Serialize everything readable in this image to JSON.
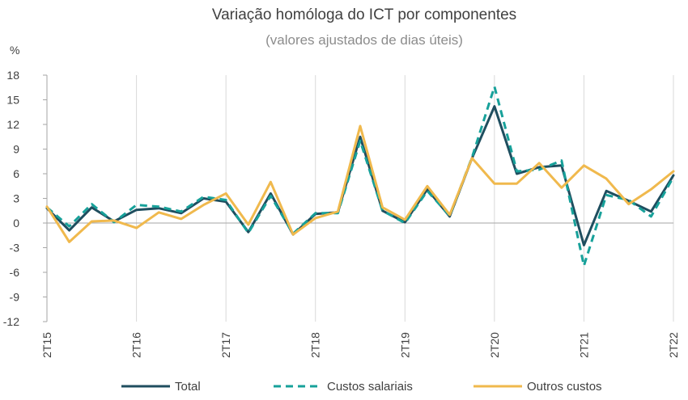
{
  "chart_data": {
    "type": "line",
    "title": "Variação homóloga do ICT por componentes",
    "subtitle": "(valores ajustados de dias úteis)",
    "ylabel": "%",
    "ylim": [
      -12,
      18
    ],
    "yticks": [
      18,
      15,
      12,
      9,
      6,
      3,
      0,
      -3,
      -6,
      -9,
      -12
    ],
    "x": [
      "2T15",
      "3T15",
      "4T15",
      "1T16",
      "2T16",
      "3T16",
      "4T16",
      "1T17",
      "2T17",
      "3T17",
      "4T17",
      "1T18",
      "2T18",
      "3T18",
      "4T18",
      "1T19",
      "2T19",
      "3T19",
      "4T19",
      "1T20",
      "2T20",
      "3T20",
      "4T20",
      "1T21",
      "2T21",
      "3T21",
      "4T21",
      "1T22",
      "2T22"
    ],
    "x_tick_labels": [
      "2T15",
      "2T16",
      "2T17",
      "2T18",
      "2T19",
      "2T20",
      "2T21",
      "2T22"
    ],
    "grid": "vertical",
    "legend_position": "bottom",
    "series": [
      {
        "name": "Total",
        "color": "#1f4e5f",
        "style": "solid",
        "values": [
          1.8,
          -0.9,
          1.9,
          0.2,
          1.6,
          1.8,
          1.2,
          3.0,
          2.6,
          -1.1,
          3.6,
          -1.4,
          1.1,
          1.3,
          10.5,
          1.5,
          0.1,
          4.1,
          0.8,
          7.9,
          14.2,
          6.0,
          6.8,
          7.0,
          -2.7,
          3.9,
          2.7,
          1.4,
          5.8
        ]
      },
      {
        "name": "Custos salariais",
        "color": "#17a19a",
        "style": "dashed",
        "values": [
          1.9,
          -0.4,
          2.3,
          0.1,
          2.2,
          2.0,
          1.4,
          3.2,
          2.8,
          -1.2,
          3.3,
          -1.3,
          1.2,
          1.2,
          10.0,
          1.5,
          0.0,
          3.9,
          0.9,
          8.0,
          16.6,
          6.3,
          6.5,
          7.6,
          -5.2,
          3.4,
          2.8,
          0.8,
          5.6
        ]
      },
      {
        "name": "Outros custos",
        "color": "#f0b94d",
        "style": "solid",
        "values": [
          2.0,
          -2.3,
          0.2,
          0.3,
          -0.6,
          1.3,
          0.5,
          2.2,
          3.6,
          -0.2,
          5.0,
          -1.4,
          0.6,
          1.4,
          11.8,
          1.9,
          0.4,
          4.5,
          1.0,
          7.9,
          4.8,
          4.8,
          7.3,
          4.3,
          7.0,
          5.4,
          2.3,
          4.1,
          6.3
        ]
      }
    ]
  }
}
